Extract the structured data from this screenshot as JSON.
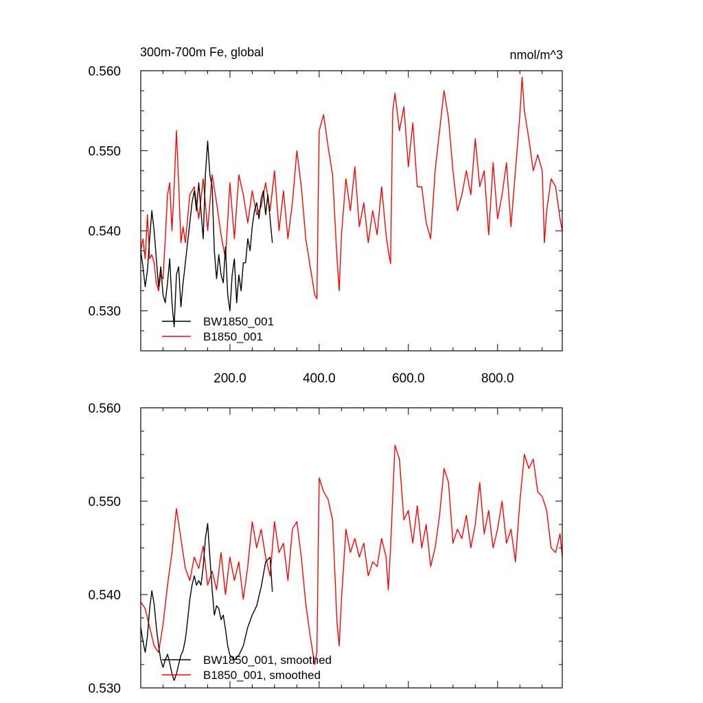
{
  "chart_data": [
    {
      "type": "line",
      "title": "300m-700m Fe, global",
      "units": "nmol/m^3",
      "xlim": [
        0,
        945
      ],
      "ylim": [
        0.525,
        0.56
      ],
      "x_ticks": [
        200,
        400,
        600,
        800
      ],
      "x_tick_labels": [
        "200.0",
        "400.0",
        "600.0",
        "800.0"
      ],
      "y_ticks": [
        0.53,
        0.54,
        0.55,
        0.56
      ],
      "y_tick_labels": [
        "0.530",
        "0.540",
        "0.550",
        "0.560"
      ],
      "grid": false,
      "legend_position": "bottom-left",
      "series": [
        {
          "name": "BW1850_001",
          "color": "#000000",
          "x": [
            0,
            5,
            10,
            15,
            20,
            25,
            30,
            35,
            40,
            45,
            50,
            55,
            60,
            65,
            70,
            75,
            80,
            85,
            90,
            95,
            100,
            105,
            110,
            115,
            120,
            125,
            130,
            135,
            140,
            145,
            150,
            155,
            160,
            165,
            170,
            175,
            180,
            185,
            190,
            195,
            200,
            205,
            210,
            215,
            220,
            225,
            230,
            235,
            240,
            245,
            250,
            255,
            260,
            265,
            270,
            275,
            280,
            285,
            290,
            295
          ],
          "y": [
            0.5375,
            0.5355,
            0.533,
            0.535,
            0.539,
            0.5425,
            0.54,
            0.5365,
            0.533,
            0.5355,
            0.532,
            0.531,
            0.5335,
            0.5365,
            0.531,
            0.528,
            0.5345,
            0.5355,
            0.5305,
            0.5335,
            0.536,
            0.5385,
            0.541,
            0.5435,
            0.545,
            0.5425,
            0.546,
            0.5425,
            0.539,
            0.547,
            0.5512,
            0.547,
            0.5455,
            0.5375,
            0.534,
            0.537,
            0.5345,
            0.5335,
            0.538,
            0.532,
            0.53,
            0.5345,
            0.5365,
            0.531,
            0.5345,
            0.5325,
            0.536,
            0.536,
            0.539,
            0.5375,
            0.5405,
            0.5425,
            0.5435,
            0.5415,
            0.544,
            0.545,
            0.542,
            0.5445,
            0.5415,
            0.5385
          ]
        },
        {
          "name": "B1850_001",
          "color": "#ff0000",
          "x": [
            0,
            5,
            10,
            15,
            20,
            25,
            30,
            35,
            40,
            45,
            50,
            55,
            60,
            65,
            70,
            75,
            80,
            85,
            90,
            95,
            100,
            110,
            120,
            130,
            140,
            150,
            160,
            170,
            180,
            190,
            200,
            210,
            220,
            230,
            240,
            250,
            260,
            270,
            280,
            290,
            300,
            310,
            320,
            330,
            340,
            350,
            360,
            370,
            380,
            390,
            395,
            400,
            410,
            420,
            430,
            440,
            445,
            450,
            460,
            470,
            480,
            490,
            500,
            510,
            520,
            530,
            540,
            550,
            555,
            560,
            565,
            570,
            580,
            590,
            600,
            610,
            620,
            630,
            640,
            650,
            660,
            670,
            680,
            690,
            700,
            710,
            720,
            730,
            740,
            750,
            760,
            770,
            780,
            790,
            800,
            810,
            820,
            830,
            840,
            850,
            855,
            860,
            870,
            880,
            890,
            900,
            905,
            910,
            920,
            930,
            940,
            945
          ],
          "y": [
            0.5375,
            0.539,
            0.5365,
            0.542,
            0.5365,
            0.537,
            0.536,
            0.5335,
            0.5325,
            0.5345,
            0.534,
            0.539,
            0.5445,
            0.546,
            0.54,
            0.5455,
            0.5525,
            0.546,
            0.5385,
            0.5405,
            0.5385,
            0.5445,
            0.5455,
            0.5415,
            0.5465,
            0.54,
            0.547,
            0.5435,
            0.5395,
            0.5365,
            0.546,
            0.539,
            0.547,
            0.5445,
            0.541,
            0.545,
            0.542,
            0.543,
            0.546,
            0.5425,
            0.5475,
            0.54,
            0.545,
            0.539,
            0.5435,
            0.55,
            0.5455,
            0.539,
            0.5355,
            0.532,
            0.5315,
            0.5525,
            0.5545,
            0.5505,
            0.547,
            0.5365,
            0.5325,
            0.5395,
            0.5465,
            0.5425,
            0.548,
            0.5405,
            0.5435,
            0.5385,
            0.5425,
            0.5395,
            0.5455,
            0.5395,
            0.5375,
            0.5359,
            0.555,
            0.5572,
            0.5525,
            0.5555,
            0.548,
            0.5535,
            0.5455,
            0.5455,
            0.541,
            0.539,
            0.5475,
            0.5525,
            0.5575,
            0.554,
            0.5475,
            0.5425,
            0.5445,
            0.5475,
            0.5445,
            0.5515,
            0.5455,
            0.5475,
            0.5395,
            0.5485,
            0.5415,
            0.5445,
            0.5485,
            0.5405,
            0.5475,
            0.5545,
            0.5592,
            0.555,
            0.5515,
            0.5475,
            0.5495,
            0.5475,
            0.5385,
            0.5425,
            0.5465,
            0.5455,
            0.5415,
            0.54
          ]
        }
      ]
    },
    {
      "type": "line",
      "xlim": [
        0,
        945
      ],
      "ylim": [
        0.53,
        0.56
      ],
      "x_ticks": [
        200,
        400,
        600,
        800
      ],
      "y_ticks": [
        0.53,
        0.54,
        0.55,
        0.56
      ],
      "y_tick_labels": [
        "0.530",
        "0.540",
        "0.550",
        "0.560"
      ],
      "grid": false,
      "legend_position": "bottom-left",
      "series": [
        {
          "name": "BW1850_001, smoothed",
          "color": "#000000",
          "x": [
            0,
            5,
            10,
            15,
            20,
            25,
            30,
            35,
            40,
            45,
            50,
            55,
            60,
            65,
            70,
            75,
            80,
            85,
            90,
            95,
            100,
            105,
            110,
            115,
            120,
            125,
            130,
            135,
            140,
            145,
            150,
            155,
            160,
            165,
            170,
            175,
            180,
            185,
            190,
            195,
            200,
            210,
            220,
            230,
            240,
            250,
            260,
            270,
            280,
            290,
            295
          ],
          "y": [
            0.5365,
            0.535,
            0.5338,
            0.5355,
            0.5385,
            0.5404,
            0.539,
            0.5365,
            0.5345,
            0.533,
            0.5322,
            0.533,
            0.5336,
            0.5327,
            0.5315,
            0.5308,
            0.5315,
            0.5325,
            0.5335,
            0.534,
            0.5352,
            0.5372,
            0.5395,
            0.541,
            0.542,
            0.541,
            0.5415,
            0.541,
            0.543,
            0.546,
            0.5476,
            0.544,
            0.5405,
            0.5378,
            0.5388,
            0.5385,
            0.5373,
            0.5378,
            0.5363,
            0.5345,
            0.5335,
            0.533,
            0.5335,
            0.5345,
            0.5365,
            0.5378,
            0.5388,
            0.5408,
            0.5435,
            0.544,
            0.5403
          ]
        },
        {
          "name": "B1850_001, smoothed",
          "color": "#ff0000",
          "x": [
            0,
            10,
            20,
            30,
            40,
            50,
            60,
            70,
            80,
            90,
            100,
            110,
            120,
            130,
            140,
            150,
            160,
            170,
            180,
            190,
            200,
            210,
            220,
            230,
            240,
            250,
            260,
            270,
            280,
            290,
            300,
            310,
            320,
            330,
            340,
            350,
            360,
            370,
            380,
            390,
            395,
            400,
            410,
            420,
            430,
            440,
            445,
            450,
            460,
            470,
            480,
            490,
            500,
            510,
            520,
            530,
            540,
            550,
            555,
            560,
            570,
            580,
            590,
            600,
            610,
            620,
            630,
            640,
            650,
            660,
            670,
            680,
            690,
            700,
            710,
            720,
            730,
            740,
            750,
            760,
            770,
            780,
            790,
            800,
            810,
            820,
            830,
            840,
            850,
            860,
            870,
            880,
            890,
            900,
            910,
            920,
            930,
            940,
            945
          ],
          "y": [
            0.5392,
            0.5385,
            0.5365,
            0.5345,
            0.5338,
            0.5368,
            0.541,
            0.5445,
            0.5492,
            0.546,
            0.5428,
            0.5415,
            0.544,
            0.5428,
            0.5452,
            0.541,
            0.5425,
            0.5405,
            0.5445,
            0.54,
            0.544,
            0.5415,
            0.5435,
            0.5395,
            0.543,
            0.5478,
            0.545,
            0.547,
            0.544,
            0.542,
            0.5478,
            0.5445,
            0.5455,
            0.5415,
            0.547,
            0.5478,
            0.544,
            0.539,
            0.5355,
            0.5325,
            0.5338,
            0.5525,
            0.551,
            0.5502,
            0.548,
            0.537,
            0.5345,
            0.5395,
            0.547,
            0.5445,
            0.546,
            0.544,
            0.5455,
            0.542,
            0.5435,
            0.543,
            0.546,
            0.544,
            0.5405,
            0.545,
            0.556,
            0.5545,
            0.548,
            0.549,
            0.5455,
            0.5495,
            0.545,
            0.5475,
            0.543,
            0.545,
            0.5485,
            0.5535,
            0.552,
            0.5455,
            0.547,
            0.546,
            0.5485,
            0.545,
            0.5475,
            0.552,
            0.5465,
            0.549,
            0.545,
            0.547,
            0.55,
            0.5455,
            0.547,
            0.5435,
            0.55,
            0.555,
            0.5535,
            0.5545,
            0.551,
            0.5505,
            0.549,
            0.545,
            0.5445,
            0.5465,
            0.544
          ]
        }
      ]
    }
  ]
}
